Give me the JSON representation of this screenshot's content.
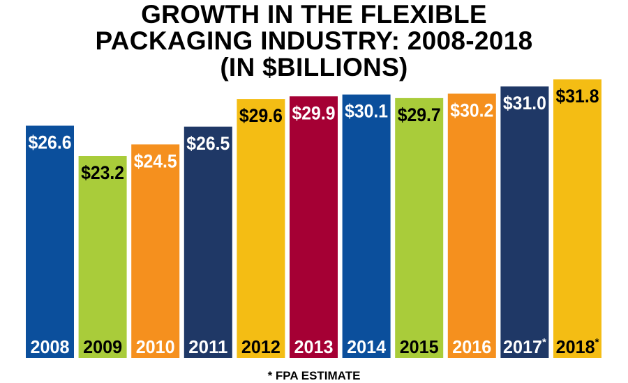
{
  "title_lines": [
    "GROWTH IN THE FLEXIBLE",
    "PACKAGING INDUSTRY: 2008-2018",
    "(IN $BILLIONS)"
  ],
  "footnote": "* FPA ESTIMATE",
  "chart_data": {
    "type": "bar",
    "title": "GROWTH IN THE FLEXIBLE PACKAGING INDUSTRY: 2008-2018 (IN $BILLIONS)",
    "categories": [
      "2008",
      "2009",
      "2010",
      "2011",
      "2012",
      "2013",
      "2014",
      "2015",
      "2016",
      "2017",
      "2018"
    ],
    "values": [
      26.6,
      23.2,
      24.5,
      26.5,
      29.6,
      29.9,
      30.1,
      29.7,
      30.2,
      31.0,
      31.8
    ],
    "value_labels": [
      "$26.6",
      "$23.2",
      "$24.5",
      "$26.5",
      "$29.6",
      "$29.9",
      "$30.1",
      "$29.7",
      "$30.2",
      "$31.0",
      "$31.8"
    ],
    "estimate_marks": [
      "",
      "",
      "",
      "",
      "",
      "",
      "",
      "",
      "",
      "*",
      "*"
    ],
    "colors": [
      "#0b4f9c",
      "#a9cc3a",
      "#f5901e",
      "#1f3866",
      "#f4bd14",
      "#a50034",
      "#0b4f9c",
      "#a9cc3a",
      "#f5901e",
      "#1f3866",
      "#f4bd14"
    ],
    "value_label_colors": [
      "#ffffff",
      "#000000",
      "#ffffff",
      "#ffffff",
      "#000000",
      "#ffffff",
      "#ffffff",
      "#000000",
      "#ffffff",
      "#ffffff",
      "#000000"
    ],
    "year_label_colors": [
      "#ffffff",
      "#000000",
      "#ffffff",
      "#ffffff",
      "#000000",
      "#ffffff",
      "#ffffff",
      "#000000",
      "#ffffff",
      "#ffffff",
      "#000000"
    ],
    "xlabel": "",
    "ylabel": "",
    "grid": false,
    "legend": "none"
  }
}
